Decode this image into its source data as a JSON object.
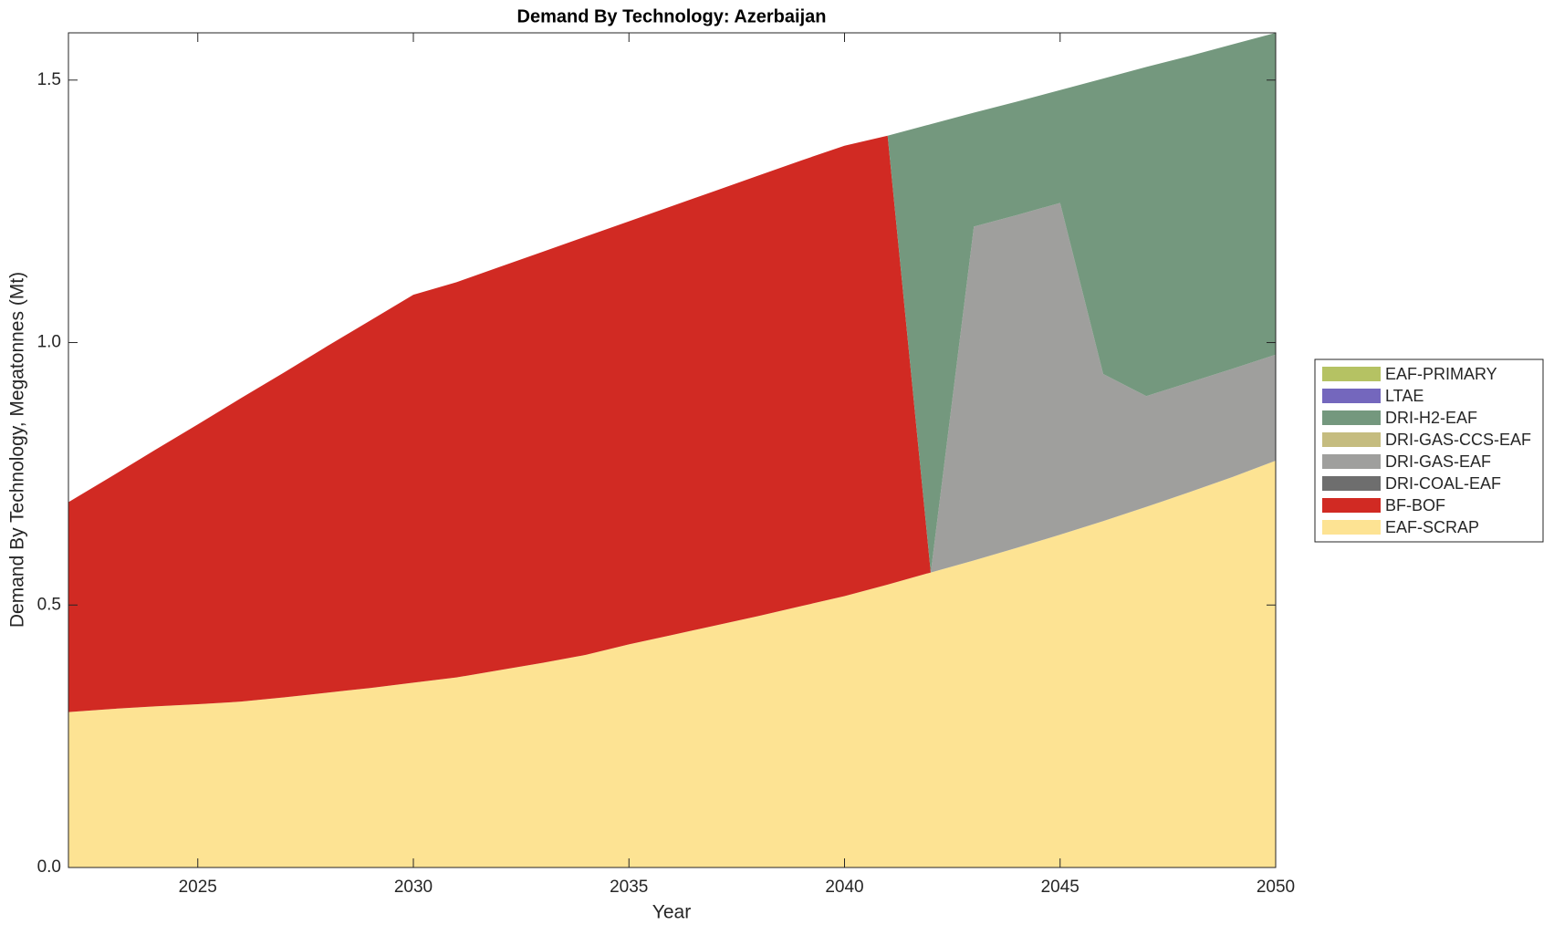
{
  "chart_data": {
    "type": "stacked_area",
    "title": "Demand By Technology: Azerbaijan",
    "xlabel": "Year",
    "ylabel": "Demand By Technology, Megatonnes (Mt)",
    "x": [
      2022,
      2023,
      2024,
      2025,
      2026,
      2027,
      2028,
      2029,
      2030,
      2031,
      2032,
      2033,
      2034,
      2035,
      2036,
      2037,
      2038,
      2039,
      2040,
      2041,
      2042,
      2043,
      2044,
      2045,
      2046,
      2047,
      2048,
      2049,
      2050
    ],
    "xlim": [
      2022,
      2050
    ],
    "xticks": [
      2025,
      2030,
      2035,
      2040,
      2045,
      2050
    ],
    "ylim": [
      0,
      1.59
    ],
    "yticks": [
      {
        "value": 0,
        "label": "0.0"
      },
      0.5,
      {
        "value": 1,
        "label": "1.0"
      },
      1.5
    ],
    "legend": "right",
    "series": [
      {
        "name": "EAF-SCRAP",
        "color": "#fde393",
        "values": [
          0.296,
          0.302,
          0.307,
          0.311,
          0.316,
          0.324,
          0.333,
          0.342,
          0.352,
          0.362,
          0.376,
          0.39,
          0.405,
          0.425,
          0.443,
          0.461,
          0.479,
          0.498,
          0.517,
          0.539,
          0.562,
          0.585,
          0.609,
          0.634,
          0.66,
          0.687,
          0.715,
          0.744,
          0.775
        ]
      },
      {
        "name": "BF-BOF",
        "color": "#d12a23",
        "values": [
          0.4,
          0.443,
          0.488,
          0.533,
          0.578,
          0.619,
          0.66,
          0.7,
          0.739,
          0.753,
          0.768,
          0.783,
          0.797,
          0.806,
          0.817,
          0.828,
          0.839,
          0.849,
          0.858,
          0.855,
          0,
          0,
          0,
          0,
          0,
          0,
          0,
          0,
          0
        ]
      },
      {
        "name": "DRI-COAL-EAF",
        "color": "#6e6e6e",
        "values": [
          0,
          0,
          0,
          0,
          0,
          0,
          0,
          0,
          0,
          0,
          0,
          0,
          0,
          0,
          0,
          0,
          0,
          0,
          0,
          0,
          0,
          0,
          0,
          0,
          0,
          0,
          0,
          0,
          0
        ]
      },
      {
        "name": "DRI-GAS-EAF",
        "color": "#9f9f9d",
        "values": [
          0,
          0,
          0,
          0,
          0,
          0,
          0,
          0,
          0,
          0,
          0,
          0,
          0,
          0,
          0,
          0,
          0,
          0,
          0,
          0,
          0,
          0.636,
          0.634,
          0.632,
          0.28,
          0.211,
          0.209,
          0.206,
          0.202
        ]
      },
      {
        "name": "DRI-GAS-CCS-EAF",
        "color": "#c5bc7f",
        "values": [
          0,
          0,
          0,
          0,
          0,
          0,
          0,
          0,
          0,
          0,
          0,
          0,
          0,
          0,
          0,
          0,
          0,
          0,
          0,
          0,
          0,
          0,
          0,
          0,
          0,
          0,
          0,
          0,
          0
        ]
      },
      {
        "name": "DRI-H2-EAF",
        "color": "#74987e",
        "values": [
          0,
          0,
          0,
          0,
          0,
          0,
          0,
          0,
          0,
          0,
          0,
          0,
          0,
          0,
          0,
          0,
          0,
          0,
          0,
          0,
          0.854,
          0.217,
          0.216,
          0.215,
          0.563,
          0.627,
          0.622,
          0.618,
          0.613
        ]
      },
      {
        "name": "LTAE",
        "color": "#7467bd",
        "values": [
          0,
          0,
          0,
          0,
          0,
          0,
          0,
          0,
          0,
          0,
          0,
          0,
          0,
          0,
          0,
          0,
          0,
          0,
          0,
          0,
          0,
          0,
          0,
          0,
          0,
          0,
          0,
          0,
          0
        ]
      },
      {
        "name": "EAF-PRIMARY",
        "color": "#b5c263",
        "values": [
          0,
          0,
          0,
          0,
          0,
          0,
          0,
          0,
          0,
          0,
          0,
          0,
          0,
          0,
          0,
          0,
          0,
          0,
          0,
          0,
          0,
          0,
          0,
          0,
          0,
          0,
          0,
          0,
          0
        ]
      }
    ]
  }
}
